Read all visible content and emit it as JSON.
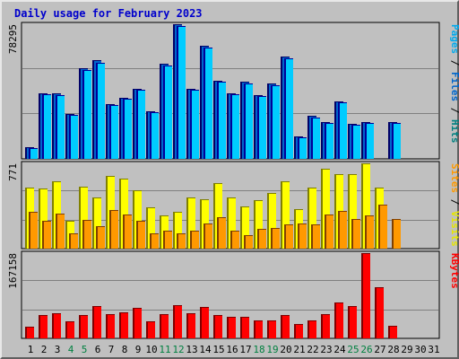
{
  "chart_data": {
    "type": "bar",
    "title": "Daily usage for February 2023",
    "days": [
      "1",
      "2",
      "3",
      "4",
      "5",
      "6",
      "7",
      "8",
      "9",
      "10",
      "11",
      "12",
      "13",
      "14",
      "15",
      "16",
      "17",
      "18",
      "19",
      "20",
      "21",
      "22",
      "23",
      "24",
      "25",
      "26",
      "27",
      "28",
      "29",
      "30",
      "31"
    ],
    "weekend_days": [
      "4",
      "5",
      "11",
      "12",
      "18",
      "19",
      "25",
      "26"
    ],
    "colors": {
      "hits": "#00ccff",
      "files": "#0066cc",
      "pages": "#00aaee",
      "visits": "#ffff00",
      "sites": "#ff9900",
      "kbytes": "#ff0000",
      "weekend_label": "#008040",
      "weekday_label": "#000000",
      "title": "#0000cc"
    },
    "panels": [
      {
        "name": "hits-files-pages",
        "max_label": "78295",
        "ymax": 78295,
        "right_labels": [
          {
            "text": "Pages",
            "color": "#00aaee"
          },
          {
            "text": " / ",
            "color": "#000000"
          },
          {
            "text": "Files",
            "color": "#0066cc"
          },
          {
            "text": " / ",
            "color": "#000000"
          },
          {
            "text": "Hits",
            "color": "#008080"
          }
        ],
        "series": [
          {
            "key": "files",
            "values": [
              7000,
              38300,
              38300,
              26300,
              52700,
              57300,
              31800,
              35600,
              40800,
              27600,
              55500,
              78295,
              40900,
              65900,
              45600,
              38200,
              44900,
              37300,
              43600,
              59700,
              13300,
              24800,
              21600,
              33600,
              20500,
              21300,
              0,
              21600,
              0,
              0,
              0
            ]
          },
          {
            "key": "hits",
            "values": [
              6500,
              37800,
              37300,
              25800,
              51600,
              56000,
              31300,
              35100,
              40000,
              27000,
              54400,
              77300,
              40000,
              64600,
              44800,
              37600,
              44000,
              36600,
              42800,
              58600,
              12700,
              24200,
              21100,
              32900,
              19900,
              20700,
              0,
              21100,
              0,
              0,
              0
            ]
          }
        ]
      },
      {
        "name": "visits-sites",
        "max_label": "771",
        "ymax": 771,
        "right_labels": [
          {
            "text": "Sites",
            "color": "#ff9900"
          },
          {
            "text": " / ",
            "color": "#000000"
          },
          {
            "text": "Visits",
            "color": "#e6e600"
          }
        ],
        "series": [
          {
            "key": "visits",
            "values": [
              550,
              540,
              610,
              250,
              560,
              460,
              660,
              630,
              530,
              370,
              300,
              330,
              460,
              450,
              590,
              460,
              380,
              440,
              500,
              610,
              360,
              550,
              720,
              670,
              670,
              771,
              550,
              0,
              0,
              0,
              0
            ]
          },
          {
            "key": "sites",
            "values": [
              330,
              250,
              320,
              140,
              260,
              200,
              350,
              310,
              250,
              140,
              160,
              140,
              160,
              230,
              280,
              160,
              120,
              180,
              190,
              220,
              230,
              220,
              310,
              340,
              270,
              300,
              400,
              270,
              0,
              0,
              0
            ]
          }
        ]
      },
      {
        "name": "kbytes",
        "max_label": "167158",
        "ymax": 167158,
        "right_labels": [
          {
            "text": "KBytes",
            "color": "#ff0000"
          }
        ],
        "series": [
          {
            "key": "kbytes",
            "values": [
              22000,
              45000,
              49000,
              33000,
              45000,
              64000,
              48000,
              51000,
              59000,
              34000,
              47000,
              65000,
              50000,
              62000,
              45000,
              43000,
              42000,
              36000,
              36000,
              45000,
              29000,
              36000,
              47000,
              71000,
              63000,
              167158,
              101000,
              24000,
              0,
              0,
              0
            ]
          }
        ]
      }
    ]
  }
}
